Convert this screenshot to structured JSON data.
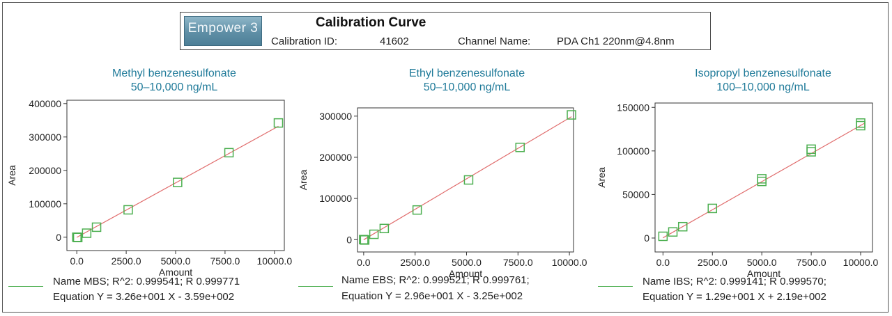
{
  "header": {
    "logo_text": "Empower 3",
    "title": "Calibration Curve",
    "calibration_id_label": "Calibration ID:",
    "calibration_id": "41602",
    "channel_label": "Channel Name:",
    "channel_name": "PDA Ch1 220nm@4.8nm"
  },
  "colors": {
    "title": "#1f7a99",
    "fit_line": "#e06c6c",
    "marker": "#4caf50",
    "axis": "#333333"
  },
  "chart_data": [
    {
      "type": "scatter",
      "title": "Methyl benzenesulfonate",
      "subtitle": "50–10,000 ng/mL",
      "xlabel": "Amount",
      "ylabel": "Area",
      "xlim": [
        -500,
        10500
      ],
      "ylim": [
        -40000,
        410000
      ],
      "x_ticks": [
        0,
        2500,
        5000,
        7500,
        10000
      ],
      "x_tick_labels": [
        "0.0",
        "2500.0",
        "5000.0",
        "7500.0",
        "10000.0"
      ],
      "y_ticks": [
        0,
        100000,
        200000,
        300000,
        400000
      ],
      "y_tick_labels": [
        "0",
        "100000",
        "200000",
        "300000",
        "400000"
      ],
      "points": [
        [
          0,
          0
        ],
        [
          50,
          -1000
        ],
        [
          500,
          12000
        ],
        [
          1000,
          30000
        ],
        [
          2600,
          82000
        ],
        [
          5100,
          164000
        ],
        [
          7700,
          253000
        ],
        [
          10200,
          342000
        ]
      ],
      "fit": {
        "slope": 32.6,
        "intercept": -359,
        "x_range": [
          0,
          10200
        ]
      },
      "legend": {
        "line1": "Name MBS;   R^2: 0.999541; R 0.999771",
        "line2": "Equation Y = 3.26e+001 X  - 3.59e+002"
      }
    },
    {
      "type": "scatter",
      "title": "Ethyl benzenesulfonate",
      "subtitle": "50–10,000 ng/mL",
      "xlabel": "Amount",
      "ylabel": "Area",
      "xlim": [
        -300,
        10200
      ],
      "ylim": [
        -30000,
        320000
      ],
      "x_ticks": [
        0,
        2500,
        5000,
        7500,
        10000
      ],
      "x_tick_labels": [
        "0.0",
        "2500.0",
        "5000.0",
        "7500.0",
        "10000.0"
      ],
      "y_ticks": [
        0,
        100000,
        200000,
        300000
      ],
      "y_tick_labels": [
        "0",
        "100000",
        "200000",
        "300000"
      ],
      "points": [
        [
          0,
          0
        ],
        [
          50,
          -1000
        ],
        [
          500,
          13000
        ],
        [
          1000,
          27000
        ],
        [
          2600,
          72000
        ],
        [
          5100,
          145000
        ],
        [
          7600,
          224000
        ],
        [
          10100,
          303000
        ]
      ],
      "fit": {
        "slope": 29.6,
        "intercept": -325,
        "x_range": [
          0,
          10100
        ]
      },
      "legend": {
        "line1": "Name EBS;   R^2: 0.999521; R 0.999761;",
        "line2": "Equation Y = 2.96e+001 X  - 3.25e+002"
      }
    },
    {
      "type": "scatter",
      "title": "Isopropyl benzenesulfonate",
      "subtitle": "100–10,000 ng/mL",
      "xlabel": "Amount",
      "ylabel": "Area",
      "xlim": [
        -400,
        10600
      ],
      "ylim": [
        -16000,
        155000
      ],
      "x_ticks": [
        0,
        2500,
        5000,
        7500,
        10000
      ],
      "x_tick_labels": [
        "0.0",
        "2500.0",
        "5000.0",
        "7500.0",
        "10000.0"
      ],
      "y_ticks": [
        0,
        50000,
        100000,
        150000
      ],
      "y_tick_labels": [
        "0",
        "50000",
        "100000",
        "150000"
      ],
      "points": [
        [
          0,
          2000
        ],
        [
          500,
          7000
        ],
        [
          1000,
          13000
        ],
        [
          2500,
          34000
        ],
        [
          5000,
          65000
        ],
        [
          5000,
          68000
        ],
        [
          7500,
          99000
        ],
        [
          7500,
          102000
        ],
        [
          10000,
          129000
        ],
        [
          10000,
          132000
        ]
      ],
      "fit": {
        "slope": 12.9,
        "intercept": 219,
        "x_range": [
          0,
          10200
        ]
      },
      "legend": {
        "line1": "Name IBS;    R^2: 0.999141; R 0.999570;",
        "line2": "Equation Y = 1.29e+001 X  + 2.19e+002"
      }
    }
  ]
}
